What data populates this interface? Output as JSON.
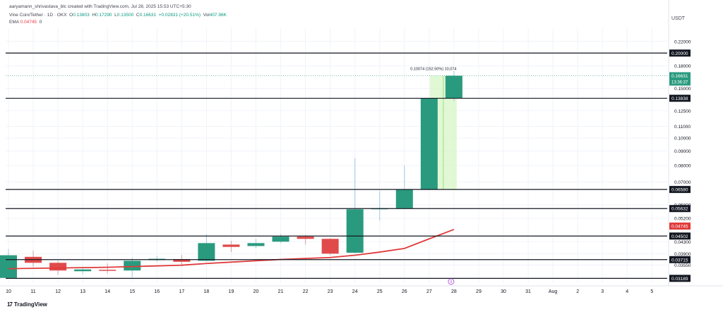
{
  "header": {
    "credit": "aaryamann_shrivastava_blc created with TradingView.com, Jul 28, 2025 15:53 UTC+5:30",
    "symbol": "Vine Coin/Tether · 1D · OKX",
    "ohlc": {
      "o_label": "O",
      "o": "0.13803",
      "h_label": "H",
      "h": "0.17290",
      "l_label": "L",
      "l": "0.13500",
      "c_label": "C",
      "c": "0.16631",
      "change": "+0.02831 (+20.51%)",
      "vol_label": "Vol",
      "vol": "407.96K"
    },
    "ema": {
      "label": "EMA",
      "value": "0.04745",
      "extra": "0"
    }
  },
  "footer": {
    "brand": "TradingView",
    "logo": "17"
  },
  "colors": {
    "up": "#2a9a7e",
    "down": "#e14a4a",
    "ema": "#e03a3a",
    "level": "#131722",
    "highlight": "#d7f5c6",
    "current": "#2a9a7e"
  },
  "chart_data": {
    "type": "candlestick",
    "currency": "USDT",
    "y_log": true,
    "ylim": [
      0.0307,
      0.245
    ],
    "ytick_labels": [
      "0.22000",
      "0.18000",
      "0.15000",
      "0.12500",
      "0.11000",
      "0.10000",
      "0.09000",
      "0.08000",
      "0.07000",
      "0.05800",
      "0.05200",
      "0.04300",
      "0.03900",
      "0.03550"
    ],
    "x_labels": [
      "10",
      "11",
      "12",
      "13",
      "14",
      "15",
      "16",
      "17",
      "18",
      "19",
      "20",
      "21",
      "22",
      "23",
      "24",
      "25",
      "26",
      "27",
      "28",
      "29",
      "30",
      "31",
      "Aug",
      "2",
      "3",
      "4",
      "5"
    ],
    "candles": [
      {
        "x": "Jul 10",
        "o": 0.032,
        "h": 0.0405,
        "l": 0.0318,
        "c": 0.0385
      },
      {
        "x": "Jul 11",
        "o": 0.038,
        "h": 0.04,
        "l": 0.035,
        "c": 0.0362
      },
      {
        "x": "Jul 12",
        "o": 0.0362,
        "h": 0.0368,
        "l": 0.0328,
        "c": 0.034
      },
      {
        "x": "Jul 13",
        "o": 0.0338,
        "h": 0.035,
        "l": 0.033,
        "c": 0.0343
      },
      {
        "x": "Jul 14",
        "o": 0.0342,
        "h": 0.036,
        "l": 0.0332,
        "c": 0.034
      },
      {
        "x": "Jul 15",
        "o": 0.034,
        "h": 0.0378,
        "l": 0.0322,
        "c": 0.0368
      },
      {
        "x": "Jul 16",
        "o": 0.037,
        "h": 0.0383,
        "l": 0.0365,
        "c": 0.0374
      },
      {
        "x": "Jul 17",
        "o": 0.0373,
        "h": 0.0386,
        "l": 0.0353,
        "c": 0.0365
      },
      {
        "x": "Jul 18",
        "o": 0.0368,
        "h": 0.0457,
        "l": 0.0366,
        "c": 0.0425
      },
      {
        "x": "Jul 19",
        "o": 0.042,
        "h": 0.0433,
        "l": 0.0395,
        "c": 0.0412
      },
      {
        "x": "Jul 20",
        "o": 0.0415,
        "h": 0.044,
        "l": 0.0408,
        "c": 0.0425
      },
      {
        "x": "Jul 21",
        "o": 0.043,
        "h": 0.0458,
        "l": 0.0425,
        "c": 0.0448
      },
      {
        "x": "Jul 22",
        "o": 0.0448,
        "h": 0.0454,
        "l": 0.042,
        "c": 0.044
      },
      {
        "x": "Jul 23",
        "o": 0.044,
        "h": 0.0443,
        "l": 0.0385,
        "c": 0.039
      },
      {
        "x": "Jul 24",
        "o": 0.0393,
        "h": 0.085,
        "l": 0.039,
        "c": 0.056
      },
      {
        "x": "Jul 25",
        "o": 0.056,
        "h": 0.065,
        "l": 0.051,
        "c": 0.0565
      },
      {
        "x": "Jul 26",
        "o": 0.0565,
        "h": 0.08,
        "l": 0.056,
        "c": 0.0658
      },
      {
        "x": "Jul 27",
        "o": 0.0658,
        "h": 0.1385,
        "l": 0.0655,
        "c": 0.138
      },
      {
        "x": "Jul 28",
        "o": 0.138,
        "h": 0.1729,
        "l": 0.135,
        "c": 0.1663
      }
    ],
    "ema": [
      0.0345,
      0.0346,
      0.0347,
      0.0348,
      0.0349,
      0.0351,
      0.0353,
      0.0355,
      0.036,
      0.0364,
      0.0368,
      0.0372,
      0.0375,
      0.0378,
      0.0385,
      0.0395,
      0.0407,
      0.044,
      0.0475
    ],
    "levels": [
      {
        "value": 0.2,
        "label": "0.20000"
      },
      {
        "value": 0.13838,
        "label": "0.13838"
      },
      {
        "value": 0.0658,
        "label": "0.06580"
      },
      {
        "value": 0.05632,
        "label": "0.05632"
      },
      {
        "value": 0.04502,
        "label": "0.04502"
      },
      {
        "value": 0.03715,
        "label": "0.03715"
      },
      {
        "value": 0.03189,
        "label": "0.03189"
      }
    ],
    "last_price": {
      "value": 0.16631,
      "label": "0.16631",
      "countdown": "13:36:37"
    },
    "ema_tag": {
      "value": 0.04745,
      "label": "0.04745"
    },
    "measure": {
      "label": "0.10074 (152.50%) 10,074",
      "from": 0.0658,
      "to": 0.1663,
      "start": "Jul 27",
      "end": "Jul 28"
    },
    "marker": {
      "label": "8",
      "x": "Jul 28"
    }
  }
}
